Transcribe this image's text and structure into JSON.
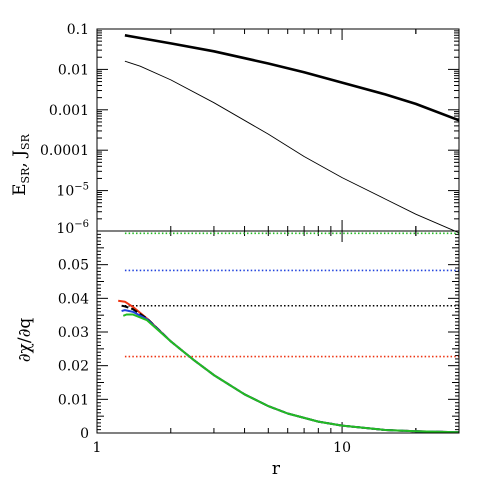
{
  "chart_data": [
    {
      "type": "line",
      "panel": "top",
      "x_scale": "log",
      "y_scale": "log",
      "xlim": [
        1,
        30
      ],
      "ylim": [
        1e-06,
        0.1
      ],
      "xlabel": "r",
      "ylabel": {
        "base1": "E",
        "sub1": "SR",
        "sep": ", ",
        "base2": "J",
        "sub2": "SR"
      },
      "ytick_values": [
        0.1,
        0.01,
        0.001,
        0.0001,
        1e-05,
        1e-06
      ],
      "ytick_labels": [
        {
          "text": "0.1"
        },
        {
          "text": "0.01"
        },
        {
          "text": "0.001"
        },
        {
          "text": "0.0001"
        },
        {
          "base": "10",
          "exp": "−5"
        },
        {
          "base": "10",
          "exp": "−6"
        }
      ],
      "series": [
        {
          "color": "#000000",
          "width": "thick",
          "x": [
            1.3,
            1.5,
            2,
            3,
            5,
            7,
            10,
            15,
            20,
            30
          ],
          "y": [
            0.07,
            0.06,
            0.044,
            0.028,
            0.014,
            0.0085,
            0.0047,
            0.0024,
            0.0014,
            0.00055
          ]
        },
        {
          "color": "#000000",
          "width": "thin",
          "x": [
            1.3,
            1.5,
            2,
            3,
            5,
            7,
            10,
            15,
            20,
            30
          ],
          "y": [
            0.016,
            0.012,
            0.0055,
            0.0015,
            0.00025,
            7e-05,
            2.1e-05,
            6.2e-06,
            2.6e-06,
            9e-07
          ]
        }
      ]
    },
    {
      "type": "line",
      "panel": "bottom",
      "x_scale": "log",
      "xlim": [
        1,
        30
      ],
      "ylim": [
        0,
        0.06
      ],
      "xlabel": "r",
      "ylabel": "∂χ/∂q",
      "xtick_values": [
        1,
        10
      ],
      "xtick_labels": [
        "1",
        "10"
      ],
      "ytick_values": [
        0,
        0.01,
        0.02,
        0.03,
        0.04,
        0.05
      ],
      "ytick_labels": [
        "0",
        "0.01",
        "0.02",
        "0.03",
        "0.04",
        "0.05"
      ],
      "reference_lines": [
        {
          "color": "#22bb22",
          "style": "dotted",
          "y": 0.0593,
          "x_start": 1.3
        },
        {
          "color": "#2244dd",
          "style": "dotted",
          "y": 0.0483,
          "x_start": 1.3
        },
        {
          "color": "#000000",
          "style": "dotted",
          "y": 0.0378,
          "x_start": 1.3
        },
        {
          "color": "#ee3311",
          "style": "dotted",
          "y": 0.0227,
          "x_start": 1.3
        }
      ],
      "series": [
        {
          "color": "#ee3311",
          "x": [
            1.22,
            1.3,
            1.4,
            1.6,
            2,
            2.5,
            3,
            4,
            5,
            6,
            8,
            10,
            15,
            20,
            30
          ],
          "y": [
            0.0393,
            0.039,
            0.0375,
            0.034,
            0.0272,
            0.0215,
            0.0172,
            0.0115,
            0.008,
            0.0058,
            0.0034,
            0.0022,
            0.0009,
            0.0005,
            0.0002
          ]
        },
        {
          "color": "#000000",
          "x": [
            1.26,
            1.3,
            1.4,
            1.6,
            2,
            2.5,
            3,
            4,
            5,
            6,
            8,
            10,
            15,
            20,
            30
          ],
          "y": [
            0.0378,
            0.0376,
            0.0368,
            0.034,
            0.0272,
            0.0215,
            0.0172,
            0.0115,
            0.008,
            0.0058,
            0.0034,
            0.0022,
            0.0009,
            0.0005,
            0.0002
          ]
        },
        {
          "color": "#2244dd",
          "x": [
            1.26,
            1.3,
            1.4,
            1.6,
            2,
            2.5,
            3,
            4,
            5,
            6,
            8,
            10,
            15,
            20,
            30
          ],
          "y": [
            0.0362,
            0.0365,
            0.036,
            0.0338,
            0.0272,
            0.0215,
            0.0172,
            0.0115,
            0.008,
            0.0058,
            0.0034,
            0.0022,
            0.0009,
            0.0005,
            0.0002
          ]
        },
        {
          "color": "#22bb22",
          "x": [
            1.28,
            1.32,
            1.4,
            1.6,
            2,
            2.5,
            3,
            4,
            5,
            6,
            8,
            10,
            15,
            20,
            30
          ],
          "y": [
            0.0348,
            0.0352,
            0.0352,
            0.0335,
            0.0272,
            0.0215,
            0.0172,
            0.0115,
            0.008,
            0.0058,
            0.0034,
            0.0022,
            0.0009,
            0.0005,
            0.0002
          ]
        }
      ]
    }
  ]
}
